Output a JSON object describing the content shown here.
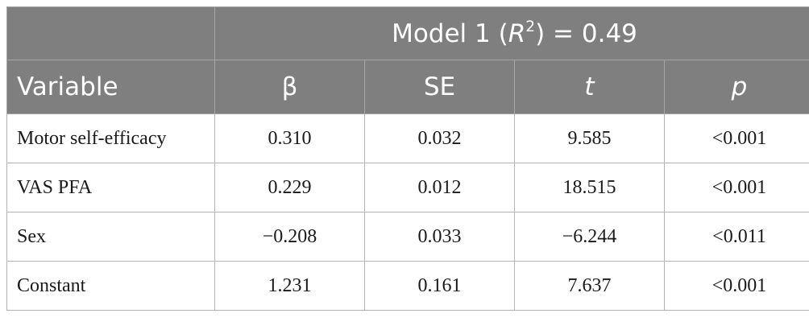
{
  "header": {
    "model_prefix": "Model 1 (",
    "r_symbol": "R",
    "r_exponent": "2",
    "model_suffix": ") = 0.49",
    "columns": [
      "Variable",
      "β",
      "SE",
      "t",
      "p"
    ]
  },
  "rows": [
    [
      "Motor self-efficacy",
      "0.310",
      "0.032",
      "9.585",
      "<0.001"
    ],
    [
      "VAS PFA",
      "0.229",
      "0.012",
      "18.515",
      "<0.001"
    ],
    [
      "Sex",
      "−0.208",
      "0.033",
      "−6.244",
      "<0.011"
    ],
    [
      "Constant",
      "1.231",
      "0.161",
      "7.637",
      "<0.001"
    ]
  ]
}
